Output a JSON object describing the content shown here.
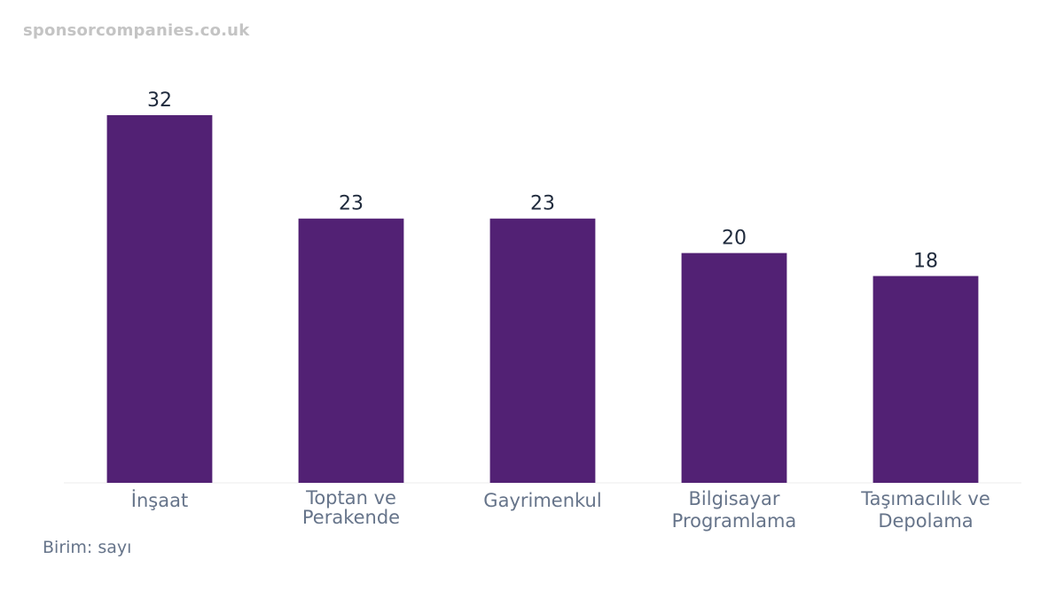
{
  "watermark": "sponsorcompanies.co.uk",
  "unit_note": "Birim: sayı",
  "colors": {
    "bar": "#522174",
    "axis": "#eeeeee"
  },
  "chart_data": {
    "type": "bar",
    "categories": [
      [
        "İnşaat"
      ],
      [
        "Toptan ve",
        "Perakende"
      ],
      [
        "Gayrimenkul"
      ],
      [
        "Bilgisayar",
        "Programlama"
      ],
      [
        "Taşımacılık ve",
        "Depolama"
      ]
    ],
    "values": [
      32,
      23,
      23,
      20,
      18
    ],
    "title": "",
    "xlabel": "",
    "ylabel": "",
    "ylim": [
      0,
      32
    ],
    "grid": false,
    "legend": "none"
  }
}
